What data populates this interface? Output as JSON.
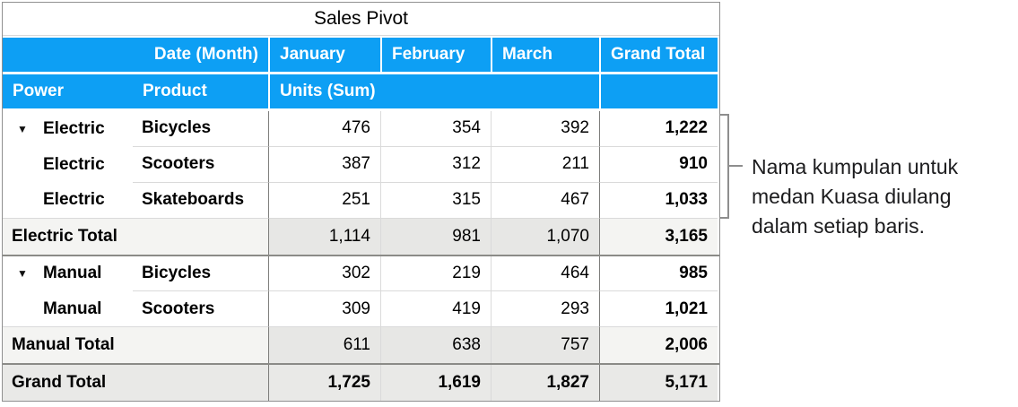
{
  "title": "Sales Pivot",
  "pivot": {
    "column_field_label": "Date (Month)",
    "months": [
      "January",
      "February",
      "March"
    ],
    "grand_total_column_label": "Grand Total",
    "row_fields": {
      "group": "Power",
      "item": "Product"
    },
    "values_label": "Units (Sum)",
    "rows": [
      {
        "type": "data",
        "power": "Electric",
        "product": "Bicycles",
        "collapsible": true,
        "values": [
          "476",
          "354",
          "392"
        ],
        "total": "1,222"
      },
      {
        "type": "data",
        "power": "Electric",
        "product": "Scooters",
        "collapsible": false,
        "values": [
          "387",
          "312",
          "211"
        ],
        "total": "910"
      },
      {
        "type": "data",
        "power": "Electric",
        "product": "Skateboards",
        "collapsible": false,
        "values": [
          "251",
          "315",
          "467"
        ],
        "total": "1,033"
      },
      {
        "type": "subtotal",
        "label": "Electric Total",
        "values": [
          "1,114",
          "981",
          "1,070"
        ],
        "total": "3,165"
      },
      {
        "type": "data",
        "power": "Manual",
        "product": "Bicycles",
        "collapsible": true,
        "values": [
          "302",
          "219",
          "464"
        ],
        "total": "985"
      },
      {
        "type": "data",
        "power": "Manual",
        "product": "Scooters",
        "collapsible": false,
        "values": [
          "309",
          "419",
          "293"
        ],
        "total": "1,021"
      },
      {
        "type": "subtotal",
        "label": "Manual Total",
        "values": [
          "611",
          "638",
          "757"
        ],
        "total": "2,006"
      },
      {
        "type": "grandtotal",
        "label": "Grand Total",
        "values": [
          "1,725",
          "1,619",
          "1,827"
        ],
        "total": "5,171"
      }
    ]
  },
  "icons": {
    "disclosure": "▼"
  },
  "colors": {
    "header_blue": "#0d9ff4",
    "subtotal_fill": "#e7e7e5",
    "subtotal_label_fill": "#f4f4f2",
    "grand_total_fill": "#e9e9e7"
  },
  "annotation": {
    "lines": [
      "Nama kumpulan untuk",
      "medan Kuasa diulang",
      "dalam setiap baris."
    ]
  }
}
